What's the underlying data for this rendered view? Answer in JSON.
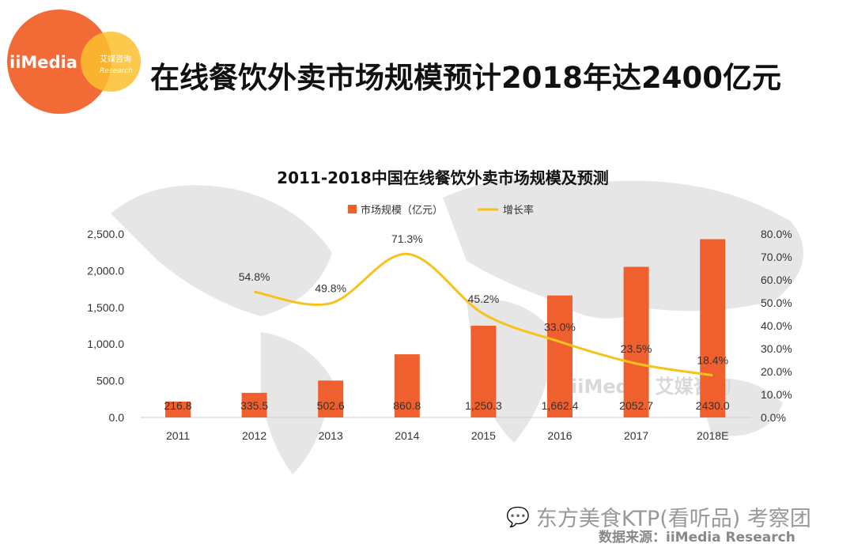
{
  "header": {
    "logo_text": "iiMedia",
    "logo_sub_cn": "艾媒咨询",
    "logo_sub_en": "Research",
    "title": "在线餐饮外卖市场规模预计2018年达2400亿元"
  },
  "footer": {
    "wechat_account": "东方美食KTP(看听品) 考察团",
    "source": "数据来源：iiMedia Research"
  },
  "watermark": "iiMedia 艾媒咨询",
  "colors": {
    "bar": "#f0602e",
    "line": "#f5c31c",
    "logo_orange": "#f26a36",
    "logo_yellow": "#fbc02d"
  },
  "chart_data": {
    "type": "bar+line",
    "title": "2011-2018中国在线餐饮外卖市场规模及预测",
    "legend": [
      "市场规模（亿元）",
      "增长率"
    ],
    "legend_position": "top-center",
    "categories": [
      "2011",
      "2012",
      "2013",
      "2014",
      "2015",
      "2016",
      "2017",
      "2018E"
    ],
    "series": [
      {
        "name": "市场规模（亿元）",
        "type": "bar",
        "axis": "left",
        "values": [
          216.8,
          335.5,
          502.6,
          860.8,
          1250.3,
          1662.4,
          2052.7,
          2430.0
        ],
        "labels": [
          "216.8",
          "335.5",
          "502.6",
          "860.8",
          "1,250.3",
          "1,662.4",
          "2052.7",
          "2430.0"
        ]
      },
      {
        "name": "增长率",
        "type": "line",
        "axis": "right",
        "values": [
          null,
          54.8,
          49.8,
          71.3,
          45.2,
          33.0,
          23.5,
          18.4
        ],
        "labels": [
          "",
          "54.8%",
          "49.8%",
          "71.3%",
          "45.2%",
          "33.0%",
          "23.5%",
          "18.4%"
        ]
      }
    ],
    "left_axis": {
      "ylim": [
        0,
        2500
      ],
      "ticks": [
        "0.0",
        "500.0",
        "1,000.0",
        "1,500.0",
        "2,000.0",
        "2,500.0"
      ]
    },
    "right_axis": {
      "ylim": [
        0,
        80
      ],
      "ticks": [
        "0.0%",
        "10.0%",
        "20.0%",
        "30.0%",
        "40.0%",
        "50.0%",
        "60.0%",
        "70.0%",
        "80.0%"
      ]
    },
    "grid": false
  }
}
